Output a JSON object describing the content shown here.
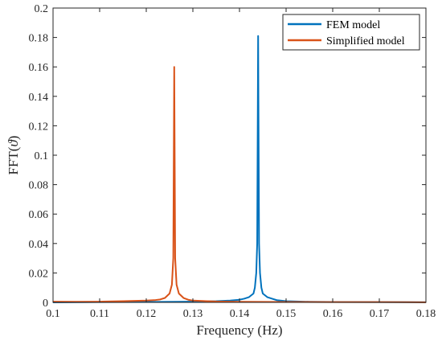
{
  "chart_data": {
    "type": "line",
    "title": "",
    "xlabel": "Frequency (Hz)",
    "ylabel_prefix": "FFT(",
    "ylabel_symbol": "ϑ",
    "ylabel_suffix": ")",
    "xlim": [
      0.1,
      0.18
    ],
    "ylim": [
      0,
      0.2
    ],
    "xticks": [
      0.1,
      0.11,
      0.12,
      0.13,
      0.14,
      0.15,
      0.16,
      0.17,
      0.18
    ],
    "xtick_labels": [
      "0.1",
      "0.11",
      "0.12",
      "0.13",
      "0.14",
      "0.15",
      "0.16",
      "0.17",
      "0.18"
    ],
    "yticks": [
      0,
      0.02,
      0.04,
      0.06,
      0.08,
      0.1,
      0.12,
      0.14,
      0.16,
      0.18,
      0.2
    ],
    "ytick_labels": [
      "0",
      "0.02",
      "0.04",
      "0.06",
      "0.08",
      "0.1",
      "0.12",
      "0.14",
      "0.16",
      "0.18",
      "0.2"
    ],
    "grid": false,
    "legend_position": "top-right",
    "series": [
      {
        "name": "FEM model",
        "color": "#0072BD",
        "x": [
          0.1,
          0.11,
          0.12,
          0.13,
          0.135,
          0.138,
          0.14,
          0.141,
          0.142,
          0.143,
          0.1433,
          0.1436,
          0.1438,
          0.144,
          0.1442,
          0.1444,
          0.1447,
          0.145,
          0.146,
          0.147,
          0.148,
          0.15,
          0.155,
          0.16,
          0.17,
          0.18
        ],
        "y": [
          0.0,
          0.0002,
          0.0003,
          0.0005,
          0.0008,
          0.0012,
          0.0018,
          0.0025,
          0.0035,
          0.006,
          0.01,
          0.02,
          0.04,
          0.181,
          0.04,
          0.02,
          0.01,
          0.006,
          0.0035,
          0.0025,
          0.0015,
          0.0008,
          0.0004,
          0.0003,
          0.0002,
          0.0001
        ]
      },
      {
        "name": "Simplified model",
        "color": "#D95319",
        "x": [
          0.1,
          0.105,
          0.11,
          0.115,
          0.12,
          0.122,
          0.123,
          0.124,
          0.125,
          0.1255,
          0.1258,
          0.126,
          0.1262,
          0.1265,
          0.127,
          0.128,
          0.129,
          0.13,
          0.135,
          0.14,
          0.15,
          0.16,
          0.17,
          0.18
        ],
        "y": [
          0.0005,
          0.0004,
          0.0005,
          0.0008,
          0.0012,
          0.0016,
          0.002,
          0.003,
          0.006,
          0.012,
          0.03,
          0.16,
          0.03,
          0.012,
          0.006,
          0.003,
          0.0018,
          0.0012,
          0.0006,
          0.0004,
          0.0003,
          0.0002,
          0.0002,
          0.0001
        ]
      }
    ]
  }
}
